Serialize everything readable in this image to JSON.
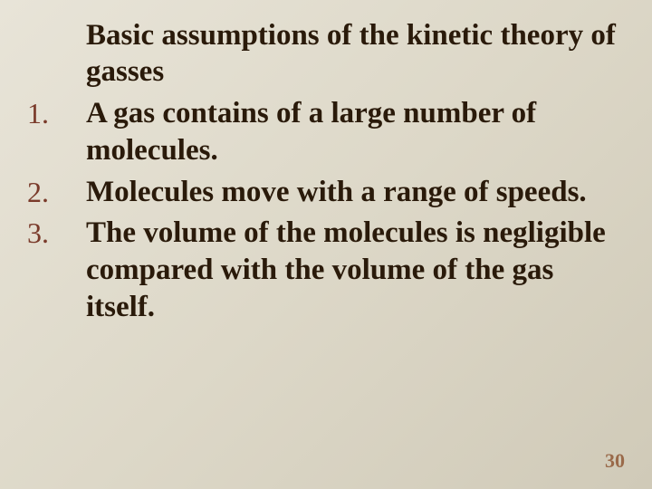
{
  "slide": {
    "title": "Basic assumptions of the kinetic theory of gasses",
    "items": [
      {
        "num": "1.",
        "text": "A gas contains of a large number of molecules."
      },
      {
        "num": "2.",
        "text": "Molecules move with a range of speeds."
      },
      {
        "num": "3.",
        "text": "The volume of the molecules is negligible compared with the volume of the gas itself."
      }
    ],
    "page_number": "30"
  },
  "colors": {
    "bg_start": "#e8e4d8",
    "bg_end": "#d0cab8",
    "text": "#2a1a0a",
    "num": "#7a3a2a",
    "pagenum": "#9a6a4a"
  }
}
